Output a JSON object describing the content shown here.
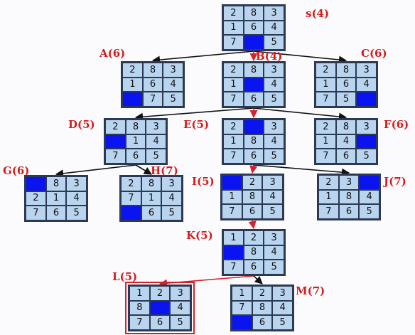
{
  "colors": {
    "tile": "#b9d4ee",
    "blank": "#0a14f0",
    "grid": "#2b3a52",
    "label": "#d31e1e",
    "best_path": "#d8202a",
    "edge": "#111111"
  },
  "nodes": [
    {
      "id": "S",
      "label": "s(4)",
      "board": [
        "2",
        "8",
        "3",
        "1",
        "6",
        "4",
        "7",
        "",
        "5"
      ]
    },
    {
      "id": "A",
      "label": "A(6)",
      "board": [
        "2",
        "8",
        "3",
        "1",
        "6",
        "4",
        "",
        "7",
        "5"
      ]
    },
    {
      "id": "B",
      "label": "B(4)",
      "board": [
        "2",
        "8",
        "3",
        "1",
        "",
        "4",
        "7",
        "6",
        "5"
      ]
    },
    {
      "id": "C",
      "label": "C(6)",
      "board": [
        "2",
        "8",
        "3",
        "1",
        "6",
        "4",
        "7",
        "5",
        ""
      ]
    },
    {
      "id": "D",
      "label": "D(5)",
      "board": [
        "2",
        "8",
        "3",
        "",
        "1",
        "4",
        "7",
        "6",
        "5"
      ]
    },
    {
      "id": "E",
      "label": "E(5)",
      "board": [
        "2",
        "",
        "3",
        "1",
        "8",
        "4",
        "7",
        "6",
        "5"
      ]
    },
    {
      "id": "F",
      "label": "F(6)",
      "board": [
        "2",
        "8",
        "3",
        "1",
        "4",
        "",
        "7",
        "6",
        "5"
      ]
    },
    {
      "id": "G",
      "label": "G(6)",
      "board": [
        "",
        "8",
        "3",
        "2",
        "1",
        "4",
        "7",
        "6",
        "5"
      ]
    },
    {
      "id": "H",
      "label": "H(7)",
      "board": [
        "2",
        "8",
        "3",
        "7",
        "1",
        "4",
        "",
        "6",
        "5"
      ]
    },
    {
      "id": "I",
      "label": "I(5)",
      "board": [
        "",
        "2",
        "3",
        "1",
        "8",
        "4",
        "7",
        "6",
        "5"
      ]
    },
    {
      "id": "J",
      "label": "J(7)",
      "board": [
        "2",
        "3",
        "",
        "1",
        "8",
        "4",
        "7",
        "6",
        "5"
      ]
    },
    {
      "id": "K",
      "label": "K(5)",
      "board": [
        "1",
        "2",
        "3",
        "",
        "8",
        "4",
        "7",
        "6",
        "5"
      ]
    },
    {
      "id": "L",
      "label": "L(5)",
      "board": [
        "1",
        "2",
        "3",
        "8",
        "",
        "4",
        "7",
        "6",
        "5"
      ]
    },
    {
      "id": "M",
      "label": "M(7)",
      "board": [
        "1",
        "2",
        "3",
        "7",
        "8",
        "4",
        "",
        "6",
        "5"
      ]
    }
  ],
  "edges": [
    {
      "from": "S",
      "to": "A",
      "best": false
    },
    {
      "from": "S",
      "to": "B",
      "best": true
    },
    {
      "from": "S",
      "to": "C",
      "best": false
    },
    {
      "from": "B",
      "to": "D",
      "best": false
    },
    {
      "from": "B",
      "to": "E",
      "best": true
    },
    {
      "from": "B",
      "to": "F",
      "best": false
    },
    {
      "from": "D",
      "to": "G",
      "best": false
    },
    {
      "from": "D",
      "to": "H",
      "best": false
    },
    {
      "from": "E",
      "to": "I",
      "best": true
    },
    {
      "from": "E",
      "to": "J",
      "best": false
    },
    {
      "from": "I",
      "to": "K",
      "best": true
    },
    {
      "from": "K",
      "to": "L",
      "best": true
    },
    {
      "from": "K",
      "to": "M",
      "best": false
    }
  ],
  "goal": "L"
}
